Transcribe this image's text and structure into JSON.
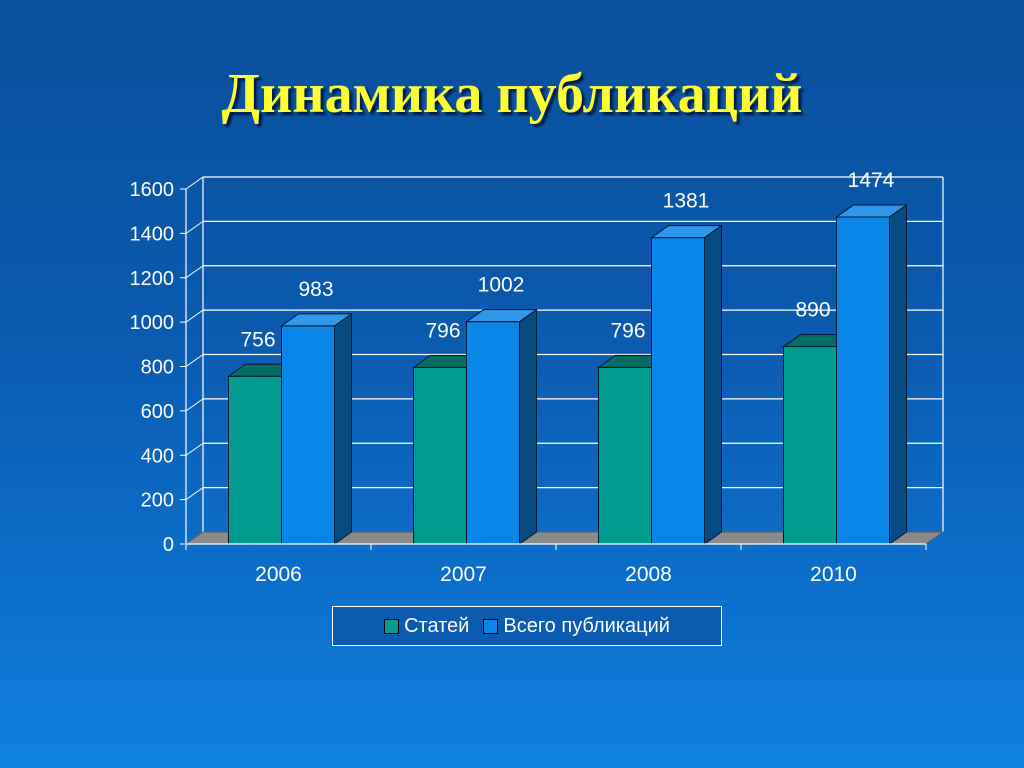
{
  "title": "Динамика публикаций",
  "colors": {
    "background": "#0b5bb0",
    "title": "#ffff33",
    "series_articles": "#009b8e",
    "series_total": "#0a86e8",
    "floor": "#8a8a8a"
  },
  "chart_data": {
    "type": "bar",
    "title": "",
    "xlabel": "",
    "ylabel": "",
    "categories": [
      "2006",
      "2007",
      "2008",
      "2010"
    ],
    "series": [
      {
        "name": "Статей",
        "values": [
          756,
          796,
          796,
          890
        ]
      },
      {
        "name": "Всего публикаций",
        "values": [
          983,
          1002,
          1381,
          1474
        ]
      }
    ],
    "ylim": [
      0,
      1600
    ],
    "yticks": [
      "0",
      "200",
      "400",
      "600",
      "800",
      "1000",
      "1200",
      "1400",
      "1600"
    ],
    "grid": true,
    "legend_position": "bottom",
    "style": "3d-clustered"
  }
}
